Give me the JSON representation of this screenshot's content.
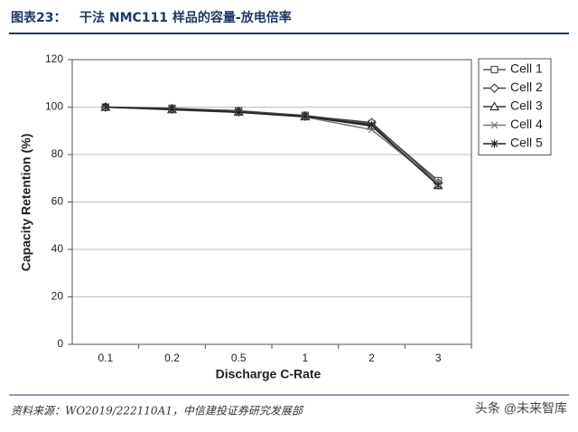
{
  "chart_data": {
    "type": "line",
    "figure_label": "图表23：",
    "title": "干法 NMC111 样品的容量-放电倍率",
    "x_label": "Discharge C-Rate",
    "y_label": "Capacity Retention (%)",
    "categories": [
      "0.1",
      "0.2",
      "0.5",
      "1",
      "2",
      "3"
    ],
    "ylim": [
      0,
      120
    ],
    "yticks": [
      0,
      20,
      40,
      60,
      80,
      100,
      120
    ],
    "grid": true,
    "legend": "right",
    "series": [
      {
        "name": "Cell 1",
        "color": "#555555",
        "marker": "square",
        "values": [
          100,
          99.5,
          98.5,
          96.5,
          93,
          69
        ]
      },
      {
        "name": "Cell 2",
        "color": "#444444",
        "marker": "diamond",
        "values": [
          100,
          99.3,
          98.2,
          96.3,
          93.5,
          68
        ]
      },
      {
        "name": "Cell 3",
        "color": "#333333",
        "marker": "triangle",
        "values": [
          100,
          99,
          98,
          96,
          92,
          67
        ]
      },
      {
        "name": "Cell 4",
        "color": "#777777",
        "marker": "x",
        "values": [
          100,
          98.8,
          97.8,
          95.8,
          90.5,
          68
        ]
      },
      {
        "name": "Cell 5",
        "color": "#222222",
        "marker": "star",
        "values": [
          100,
          99,
          97.8,
          96,
          92.5,
          67
        ]
      }
    ],
    "source": "资料来源：WO2019/222110A1，中信建投证券研究发展部",
    "watermark": "头条 @未来智库"
  }
}
